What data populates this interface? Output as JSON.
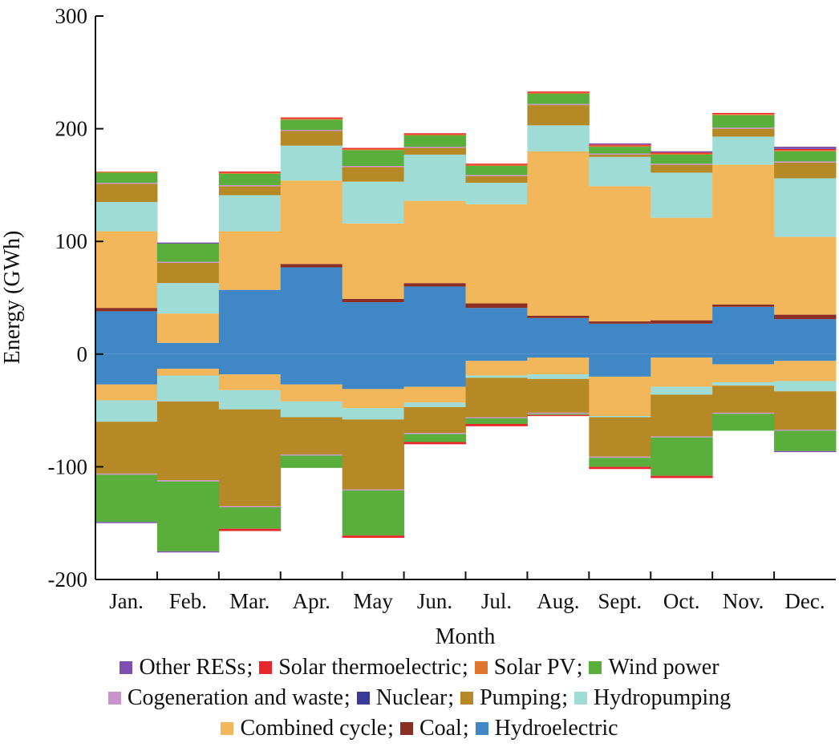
{
  "chart_data": {
    "type": "bar",
    "subtype": "stacked-step-area (positive and negative stacks)",
    "xlabel": "Month",
    "ylabel": "Energy (GWh)",
    "ylim": [
      -200,
      300
    ],
    "yticks": [
      -200,
      -100,
      0,
      100,
      200,
      300
    ],
    "grid": false,
    "legend_placement": "bottom",
    "categories": [
      "Jan.",
      "Feb.",
      "Mar.",
      "Apr.",
      "May",
      "Jun.",
      "Jul.",
      "Aug.",
      "Sept.",
      "Oct.",
      "Nov.",
      "Dec."
    ],
    "legend": [
      [
        "Other RESs",
        "Solar thermoelectric",
        "Solar PV",
        "Wind power"
      ],
      [
        "Cogeneration and waste",
        "Nuclear",
        "Pumping",
        "Hydropumping"
      ],
      [
        "Combined cycle",
        "Coal",
        "Hydroelectric"
      ]
    ],
    "series": [
      {
        "name": "Hydroelectric",
        "color": "#3f88c5",
        "pos": [
          38,
          10,
          57,
          77,
          46,
          60,
          41,
          32,
          27,
          27,
          42,
          31
        ],
        "neg": [
          -27,
          -13,
          -18,
          -27,
          -31,
          -29,
          -6,
          -3,
          -20,
          -3,
          -9,
          -6
        ]
      },
      {
        "name": "Coal",
        "color": "#8b2e24",
        "pos": [
          3,
          0,
          0,
          3,
          3,
          3,
          4,
          2,
          2,
          3,
          2,
          4
        ],
        "neg": [
          0,
          0,
          0,
          0,
          0,
          0,
          0,
          0,
          0,
          0,
          0,
          0
        ]
      },
      {
        "name": "Combined cycle",
        "color": "#f2b75a",
        "pos": [
          68,
          26,
          52,
          74,
          67,
          73,
          88,
          146,
          120,
          91,
          124,
          69
        ],
        "neg": [
          -14,
          -6,
          -14,
          -15,
          -17,
          -14,
          -13,
          -15,
          -35,
          -26,
          -16,
          -18
        ]
      },
      {
        "name": "Hydropumping",
        "color": "#a0dcd6",
        "pos": [
          26,
          27,
          32,
          31,
          37,
          41,
          19,
          23,
          26,
          40,
          25,
          52
        ],
        "neg": [
          -19,
          -23,
          -17,
          -14,
          -10,
          -4,
          -2,
          -4,
          -1,
          -7,
          -3,
          -9
        ]
      },
      {
        "name": "Pumping",
        "color": "#b58a26",
        "pos": [
          16,
          18,
          8,
          13,
          13,
          6,
          6,
          18,
          2,
          7,
          7,
          14
        ],
        "neg": [
          -46,
          -70,
          -86,
          -33,
          -62,
          -23,
          -35,
          -30,
          -35,
          -37,
          -24,
          -34
        ]
      },
      {
        "name": "Nuclear",
        "color": "#3a3a9a",
        "pos": [
          0,
          0,
          0,
          0,
          0,
          0,
          0,
          0,
          0,
          0,
          0,
          0
        ],
        "neg": [
          0,
          0,
          0,
          0,
          0,
          0,
          0,
          0,
          0,
          0,
          0,
          0
        ]
      },
      {
        "name": "Cogeneration and waste",
        "color": "#c994cc",
        "pos": [
          1,
          1,
          1,
          1,
          1,
          1,
          1,
          1,
          1,
          1,
          1,
          1
        ],
        "neg": [
          -1,
          -1,
          -1,
          -1,
          -1,
          -1,
          -1,
          -1,
          -1,
          -1,
          -1,
          -1
        ]
      },
      {
        "name": "Wind power",
        "color": "#5aae3c",
        "pos": [
          9,
          16,
          10,
          9,
          14,
          10,
          8,
          9,
          6,
          8,
          11,
          9
        ],
        "neg": [
          -42,
          -62,
          -19,
          -11,
          -40,
          -7,
          -5,
          -1,
          -8,
          -34,
          -15,
          -18
        ]
      },
      {
        "name": "Solar PV",
        "color": "#e0762e",
        "pos": [
          1,
          0,
          1,
          1,
          1,
          1,
          1,
          1,
          1,
          1,
          1,
          1
        ],
        "neg": [
          0,
          0,
          0,
          0,
          0,
          0,
          0,
          0,
          0,
          0,
          0,
          0
        ]
      },
      {
        "name": "Solar thermoelectric",
        "color": "#e8262c",
        "pos": [
          0,
          0,
          1,
          1,
          1,
          1,
          1,
          1,
          1,
          1,
          1,
          1
        ],
        "neg": [
          0,
          0,
          -2,
          0,
          -2,
          -2,
          -2,
          -1,
          -2,
          -2,
          0,
          0
        ]
      },
      {
        "name": "Other RESs",
        "color": "#7d4fb0",
        "pos": [
          0,
          1,
          0,
          0,
          0,
          0,
          0,
          0,
          1,
          1,
          0,
          2
        ],
        "neg": [
          -1,
          -1,
          0,
          0,
          0,
          0,
          0,
          0,
          0,
          0,
          0,
          -1
        ]
      }
    ]
  }
}
